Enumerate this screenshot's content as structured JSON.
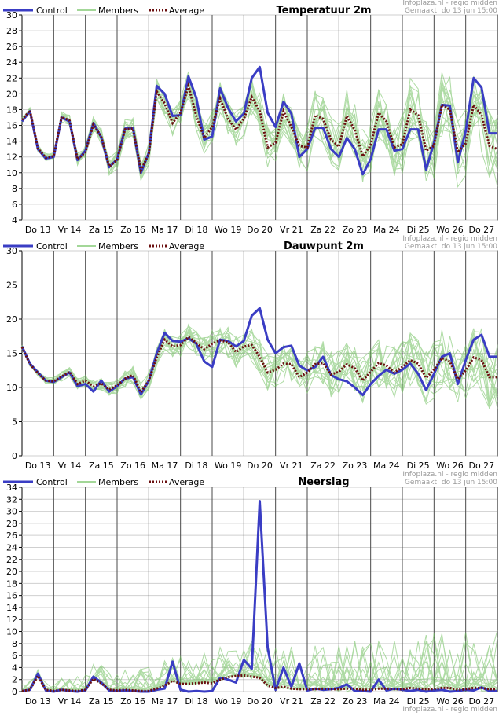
{
  "source": "Infoplaza.nl - regio midden",
  "made": "Gemaakt: do 13 jun 15:00",
  "legend": {
    "control": "Control",
    "members": "Members",
    "average": "Average"
  },
  "colors": {
    "control": "#3a3dc4",
    "members": "#6cbf5a",
    "average": "#6b1010",
    "grid": "#cfcfcf",
    "daySep": "#4a4a4a"
  },
  "days": [
    "Do 13",
    "Vr 14",
    "Za 15",
    "Zo 16",
    "Ma 17",
    "Di 18",
    "Wo 19",
    "Do 20",
    "Vr 21",
    "Za 22",
    "Zo 23",
    "Ma 24",
    "Di 25",
    "Wo 26",
    "Do 27"
  ],
  "chart_data": [
    {
      "type": "line",
      "title": "Temperatuur 2m",
      "x": [
        0,
        1,
        2,
        3,
        4,
        5,
        6,
        7,
        8,
        9,
        10,
        11,
        12,
        13,
        14,
        15,
        16,
        17,
        18,
        19,
        20,
        21,
        22,
        23,
        24,
        25,
        26,
        27,
        28,
        29,
        30,
        31,
        32,
        33,
        34,
        35,
        36,
        37,
        38,
        39,
        40,
        41,
        42,
        43,
        44,
        45,
        46,
        47,
        48,
        49,
        50,
        51,
        52,
        53,
        54,
        55,
        56,
        57,
        58,
        59,
        60
      ],
      "ylim": [
        4,
        30
      ],
      "yticks": [
        4,
        6,
        8,
        10,
        12,
        14,
        16,
        18,
        20,
        22,
        24,
        26,
        28,
        30
      ],
      "series": [
        {
          "name": "Control",
          "values": [
            16.5,
            17.8,
            13.0,
            11.8,
            12.0,
            17.0,
            16.5,
            11.6,
            12.8,
            16.3,
            14.5,
            10.7,
            11.7,
            15.6,
            15.7,
            10.0,
            12.5,
            21.0,
            20.0,
            17.2,
            17.3,
            22.2,
            19.5,
            14.2,
            14.6,
            20.7,
            18.2,
            16.5,
            17.5,
            22.0,
            23.4,
            17.6,
            15.8,
            19.0,
            17.5,
            12.0,
            13.0,
            15.7,
            15.7,
            13.0,
            12.0,
            14.4,
            13.0,
            9.8,
            11.7,
            15.5,
            15.5,
            12.8,
            13.0,
            15.5,
            15.5,
            10.4,
            13.8,
            18.6,
            18.5,
            11.3,
            15.3,
            22.0,
            20.8,
            15.0,
            15.0
          ]
        },
        {
          "name": "Average",
          "values": [
            16.7,
            17.9,
            13.1,
            11.9,
            12.1,
            17.1,
            16.6,
            11.7,
            12.6,
            16.1,
            14.6,
            10.8,
            11.6,
            15.5,
            15.6,
            10.3,
            12.4,
            20.3,
            18.8,
            16.3,
            17.6,
            21.0,
            17.2,
            14.4,
            15.8,
            19.4,
            16.8,
            15.5,
            16.8,
            19.6,
            17.8,
            13.2,
            13.8,
            17.8,
            15.8,
            13.4,
            13.2,
            17.3,
            16.8,
            14.2,
            13.3,
            17.2,
            15.4,
            12.1,
            13.5,
            17.6,
            16.5,
            13.2,
            13.6,
            18.0,
            17.3,
            12.8,
            13.4,
            18.6,
            18.0,
            12.6,
            13.7,
            18.6,
            17.3,
            13.4,
            13.0
          ]
        }
      ]
    },
    {
      "type": "line",
      "title": "Dauwpunt 2m",
      "x": [
        0,
        1,
        2,
        3,
        4,
        5,
        6,
        7,
        8,
        9,
        10,
        11,
        12,
        13,
        14,
        15,
        16,
        17,
        18,
        19,
        20,
        21,
        22,
        23,
        24,
        25,
        26,
        27,
        28,
        29,
        30,
        31,
        32,
        33,
        34,
        35,
        36,
        37,
        38,
        39,
        40,
        41,
        42,
        43,
        44,
        45,
        46,
        47,
        48,
        49,
        50,
        51,
        52,
        53,
        54,
        55,
        56,
        57,
        58,
        59,
        60
      ],
      "ylim": [
        0,
        30
      ],
      "yticks": [
        0,
        5,
        10,
        15,
        20,
        25,
        30
      ],
      "series": [
        {
          "name": "Control",
          "values": [
            16.0,
            13.5,
            12.2,
            11.0,
            10.8,
            11.5,
            12.2,
            10.2,
            10.5,
            9.4,
            11.0,
            9.4,
            10.2,
            11.3,
            11.5,
            9.0,
            11.0,
            15.0,
            18.0,
            16.8,
            16.7,
            17.2,
            16.4,
            13.8,
            13.0,
            17.0,
            16.8,
            16.0,
            16.8,
            20.5,
            21.6,
            17.0,
            15.0,
            15.9,
            16.1,
            13.2,
            12.5,
            13.0,
            14.5,
            11.8,
            11.2,
            10.9,
            10.0,
            8.9,
            10.5,
            11.7,
            12.6,
            12.0,
            12.6,
            13.5,
            12.0,
            9.6,
            12.0,
            14.5,
            15.0,
            10.5,
            14.0,
            17.0,
            17.7,
            14.5,
            14.5
          ]
        },
        {
          "name": "Average",
          "values": [
            15.9,
            13.4,
            12.1,
            11.0,
            10.9,
            11.6,
            12.3,
            10.5,
            11.0,
            10.2,
            10.6,
            9.7,
            10.3,
            11.3,
            11.8,
            9.3,
            11.0,
            14.4,
            17.0,
            16.0,
            16.2,
            17.4,
            16.5,
            15.6,
            16.4,
            16.9,
            16.6,
            15.2,
            16.0,
            16.2,
            14.5,
            12.2,
            12.6,
            13.5,
            13.4,
            11.5,
            12.2,
            13.4,
            13.6,
            11.9,
            12.3,
            13.4,
            12.8,
            11.0,
            12.3,
            13.6,
            13.2,
            12.2,
            13.0,
            14.0,
            13.5,
            11.4,
            12.6,
            14.3,
            13.8,
            11.2,
            12.5,
            14.4,
            14.0,
            11.5,
            11.5
          ]
        }
      ]
    },
    {
      "type": "line",
      "title": "Neerslag",
      "x": [
        0,
        1,
        2,
        3,
        4,
        5,
        6,
        7,
        8,
        9,
        10,
        11,
        12,
        13,
        14,
        15,
        16,
        17,
        18,
        19,
        20,
        21,
        22,
        23,
        24,
        25,
        26,
        27,
        28,
        29,
        30,
        31,
        32,
        33,
        34,
        35,
        36,
        37,
        38,
        39,
        40,
        41,
        42,
        43,
        44,
        45,
        46,
        47,
        48,
        49,
        50,
        51,
        52,
        53,
        54,
        55,
        56,
        57,
        58,
        59,
        60
      ],
      "ylim": [
        0,
        34
      ],
      "yticks": [
        0,
        2,
        4,
        6,
        8,
        10,
        12,
        14,
        16,
        18,
        20,
        22,
        24,
        26,
        28,
        30,
        32,
        34
      ],
      "series": [
        {
          "name": "Control",
          "values": [
            0.1,
            0.3,
            3.0,
            0.2,
            0.0,
            0.3,
            0.1,
            0.0,
            0.2,
            2.5,
            1.5,
            0.2,
            0.1,
            0.2,
            0.1,
            0.0,
            0.0,
            0.3,
            0.5,
            5.0,
            0.3,
            0.0,
            0.1,
            0.0,
            0.1,
            2.3,
            2.0,
            1.5,
            5.3,
            3.8,
            31.7,
            7.3,
            0.3,
            4.0,
            0.8,
            4.7,
            0.2,
            0.5,
            0.3,
            0.4,
            0.6,
            1.2,
            0.1,
            0.1,
            0.0,
            2.0,
            0.2,
            0.5,
            0.3,
            0.1,
            0.3,
            0.0,
            0.2,
            0.3,
            0.0,
            0.1,
            0.3,
            0.2,
            0.7,
            0.1,
            0.1
          ]
        },
        {
          "name": "Average",
          "values": [
            0.1,
            0.3,
            2.6,
            0.3,
            0.1,
            0.3,
            0.2,
            0.1,
            0.3,
            2.1,
            1.4,
            0.3,
            0.2,
            0.3,
            0.2,
            0.1,
            0.1,
            0.5,
            1.0,
            1.8,
            1.3,
            1.3,
            1.4,
            1.5,
            1.4,
            2.0,
            2.4,
            2.6,
            2.7,
            2.5,
            2.3,
            1.0,
            0.6,
            0.8,
            0.5,
            0.4,
            0.4,
            0.4,
            0.5,
            0.4,
            0.4,
            0.5,
            0.5,
            0.3,
            0.3,
            0.5,
            0.5,
            0.4,
            0.4,
            0.6,
            0.5,
            0.4,
            0.4,
            0.6,
            0.6,
            0.3,
            0.4,
            0.6,
            0.6,
            0.4,
            0.4
          ]
        }
      ]
    }
  ]
}
